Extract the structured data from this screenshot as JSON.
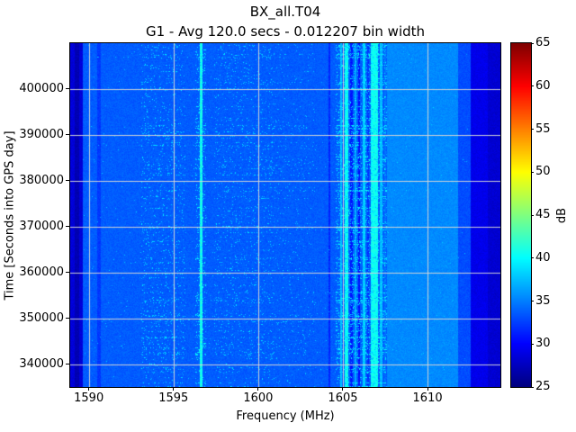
{
  "figure": {
    "title": "BX_all.T04",
    "subtitle": "G1 - Avg 120.0 secs - 0.012207 bin width"
  },
  "chart_data": {
    "type": "heatmap",
    "title": "BX_all.T04",
    "subtitle": "G1 - Avg 120.0 secs - 0.012207 bin width",
    "xlabel": "Frequency (MHz)",
    "ylabel": "Time [Seconds into GPS day]",
    "colorbar_label": "dB",
    "colormap": "jet",
    "grid": true,
    "xlim": [
      1588.9,
      1614.3
    ],
    "ylim": [
      335000,
      410000
    ],
    "xticks": [
      1590,
      1595,
      1600,
      1605,
      1610
    ],
    "yticks": [
      340000,
      350000,
      360000,
      370000,
      380000,
      390000,
      400000
    ],
    "colorbar_range": [
      25,
      65
    ],
    "colorbar_ticks": [
      25,
      30,
      35,
      40,
      45,
      50,
      55,
      60,
      65
    ],
    "background_db": 33.6,
    "bands": [
      {
        "f0": 1588.9,
        "f1": 1589.62,
        "db": 28.5
      },
      {
        "f0": 1589.18,
        "f1": 1589.45,
        "db": 27.0
      },
      {
        "f0": 1590.5,
        "f1": 1590.72,
        "db": 32.2
      },
      {
        "f0": 1607.6,
        "f1": 1611.8,
        "db": 35.4
      },
      {
        "f0": 1611.8,
        "f1": 1612.55,
        "db": 33.0
      },
      {
        "f0": 1612.55,
        "f1": 1614.3,
        "db": 29.2
      },
      {
        "f0": 1613.55,
        "f1": 1614.3,
        "db": 28.2
      }
    ],
    "lines": [
      {
        "f": 1596.62,
        "w": 0.14,
        "db": 40.8
      },
      {
        "f": 1604.2,
        "w": 0.1,
        "db": 31.5
      },
      {
        "f": 1604.9,
        "w": 0.12,
        "db": 37.5
      },
      {
        "f": 1605.2,
        "w": 0.2,
        "db": 40.5
      },
      {
        "f": 1605.5,
        "w": 0.12,
        "db": 31.0
      },
      {
        "f": 1605.75,
        "w": 0.14,
        "db": 36.5
      },
      {
        "f": 1605.97,
        "w": 0.12,
        "db": 30.5
      },
      {
        "f": 1606.25,
        "w": 0.14,
        "db": 38.0
      },
      {
        "f": 1606.5,
        "w": 0.1,
        "db": 32.0
      },
      {
        "f": 1606.85,
        "w": 0.4,
        "db": 40.5
      },
      {
        "f": 1607.25,
        "w": 0.18,
        "db": 37.5
      },
      {
        "f": 1607.5,
        "w": 0.12,
        "db": 34.5
      }
    ],
    "speckle_regions": [
      {
        "f0": 1593.1,
        "f1": 1595.7,
        "density": 0.055,
        "db_min": 36.5,
        "db_max": 40.0
      },
      {
        "f0": 1596.3,
        "f1": 1596.95,
        "density": 0.1,
        "db_min": 37.0,
        "db_max": 41.0
      },
      {
        "f0": 1597.4,
        "f1": 1600.9,
        "density": 0.045,
        "db_min": 36.5,
        "db_max": 39.5
      },
      {
        "f0": 1600.9,
        "f1": 1603.4,
        "density": 0.02,
        "db_min": 36.5,
        "db_max": 39.0
      },
      {
        "f0": 1604.6,
        "f1": 1607.6,
        "density": 0.15,
        "db_min": 36.5,
        "db_max": 41.0
      },
      {
        "f0": 1589.6,
        "f1": 1612.4,
        "density": 0.004,
        "db_min": 36.0,
        "db_max": 38.5
      }
    ]
  }
}
